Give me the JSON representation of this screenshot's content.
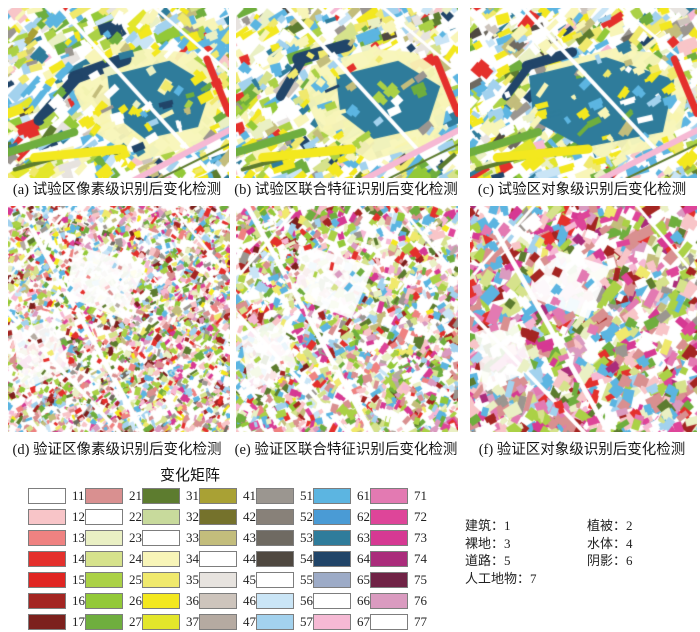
{
  "figure": {
    "panels": [
      {
        "id": "a",
        "caption": "(a) 试验区像素级识别后变化检测"
      },
      {
        "id": "b",
        "caption": "(b) 试验区联合特征识别后变化检测"
      },
      {
        "id": "c",
        "caption": "(c) 试验区对象级识别后变化检测"
      },
      {
        "id": "d",
        "caption": "(d) 验证区像素级识别后变化检测"
      },
      {
        "id": "e",
        "caption": "(e) 验证区联合特征识别后变化检测"
      },
      {
        "id": "f",
        "caption": "(f) 验证区对象级识别后变化检测"
      }
    ]
  },
  "legend": {
    "title": "变化矩阵",
    "columns": [
      {
        "entries": [
          {
            "code": "11",
            "color": "#ffffff"
          },
          {
            "code": "12",
            "color": "#f8c5c8"
          },
          {
            "code": "13",
            "color": "#ef8281"
          },
          {
            "code": "14",
            "color": "#e4302c"
          },
          {
            "code": "15",
            "color": "#e02522"
          },
          {
            "code": "16",
            "color": "#a42522"
          },
          {
            "code": "17",
            "color": "#7c201d"
          }
        ]
      },
      {
        "entries": [
          {
            "code": "21",
            "color": "#d99090"
          },
          {
            "code": "22",
            "color": "#ffffff"
          },
          {
            "code": "23",
            "color": "#eaf0c4"
          },
          {
            "code": "24",
            "color": "#d6e28c"
          },
          {
            "code": "25",
            "color": "#abd146"
          },
          {
            "code": "26",
            "color": "#93c938"
          },
          {
            "code": "27",
            "color": "#6fae3e"
          }
        ]
      },
      {
        "entries": [
          {
            "code": "31",
            "color": "#5d7c2f"
          },
          {
            "code": "32",
            "color": "#c8da9c"
          },
          {
            "code": "33",
            "color": "#ffffff"
          },
          {
            "code": "34",
            "color": "#f8f5b8"
          },
          {
            "code": "35",
            "color": "#f0e96d"
          },
          {
            "code": "36",
            "color": "#f3e81f"
          },
          {
            "code": "37",
            "color": "#e3e62b"
          }
        ]
      },
      {
        "entries": [
          {
            "code": "41",
            "color": "#a9a134"
          },
          {
            "code": "42",
            "color": "#75722c"
          },
          {
            "code": "43",
            "color": "#c3bd7c"
          },
          {
            "code": "44",
            "color": "#ffffff"
          },
          {
            "code": "45",
            "color": "#e7e3df"
          },
          {
            "code": "46",
            "color": "#cdc4bc"
          },
          {
            "code": "47",
            "color": "#b5aaa1"
          }
        ]
      },
      {
        "entries": [
          {
            "code": "51",
            "color": "#9b9690"
          },
          {
            "code": "52",
            "color": "#888179"
          },
          {
            "code": "53",
            "color": "#6f6a62"
          },
          {
            "code": "54",
            "color": "#4f4840"
          },
          {
            "code": "55",
            "color": "#ffffff"
          },
          {
            "code": "56",
            "color": "#cae5f6"
          },
          {
            "code": "57",
            "color": "#a3d2ee"
          }
        ]
      },
      {
        "entries": [
          {
            "code": "61",
            "color": "#5cb5e1"
          },
          {
            "code": "62",
            "color": "#4a9bd5"
          },
          {
            "code": "63",
            "color": "#2f7c9b"
          },
          {
            "code": "64",
            "color": "#214569"
          },
          {
            "code": "65",
            "color": "#9dabc7"
          },
          {
            "code": "66",
            "color": "#ffffff"
          },
          {
            "code": "67",
            "color": "#f6b9d4"
          }
        ]
      },
      {
        "entries": [
          {
            "code": "71",
            "color": "#e37ab2"
          },
          {
            "code": "72",
            "color": "#de4599"
          },
          {
            "code": "73",
            "color": "#d63993"
          },
          {
            "code": "74",
            "color": "#aa2c7b"
          },
          {
            "code": "75",
            "color": "#702346"
          },
          {
            "code": "76",
            "color": "#da9bc0"
          },
          {
            "code": "77",
            "color": "#ffffff"
          }
        ]
      }
    ],
    "class_columns": [
      [
        {
          "text": "建筑：1"
        },
        {
          "text": "裸地：3"
        },
        {
          "text": "道路：5"
        },
        {
          "text": "人工地物：7"
        }
      ],
      [
        {
          "text": "植被：2"
        },
        {
          "text": "水体：4"
        },
        {
          "text": "阴影：6"
        }
      ]
    ]
  }
}
